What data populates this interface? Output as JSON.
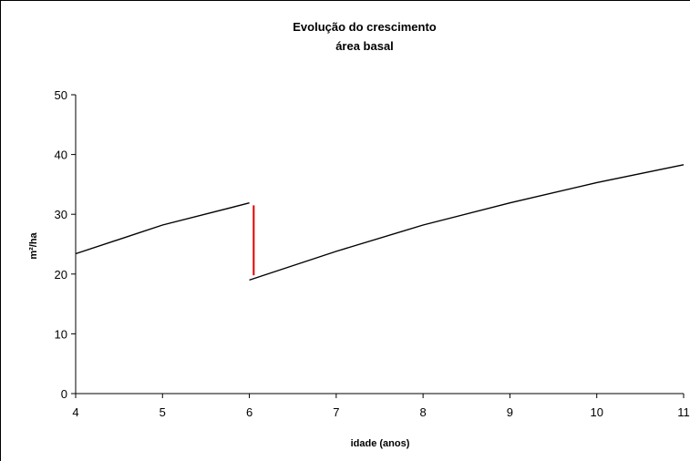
{
  "chart_data": {
    "type": "line",
    "title": [
      "Evolução do crescimento",
      "área basal"
    ],
    "xlabel": "idade (anos)",
    "ylabel": "m²/ha",
    "xlim": [
      4,
      11
    ],
    "ylim": [
      0,
      50
    ],
    "xticks": [
      4,
      5,
      6,
      7,
      8,
      9,
      10,
      11
    ],
    "yticks": [
      0,
      10,
      20,
      30,
      40,
      50
    ],
    "grid": false,
    "legend": "none",
    "series": [
      {
        "color": "#000000",
        "points": [
          [
            4,
            23.4
          ],
          [
            5,
            28.2
          ],
          [
            6,
            31.9
          ]
        ]
      },
      {
        "color": "#000000",
        "points": [
          [
            6,
            19.0
          ],
          [
            7,
            23.8
          ],
          [
            8,
            28.2
          ],
          [
            9,
            31.9
          ],
          [
            10,
            35.3
          ],
          [
            11,
            38.3
          ]
        ]
      }
    ],
    "annotations": [
      {
        "type": "vline",
        "color": "#e00000",
        "x": 6.05,
        "y": [
          19.8,
          31.5
        ]
      }
    ]
  }
}
